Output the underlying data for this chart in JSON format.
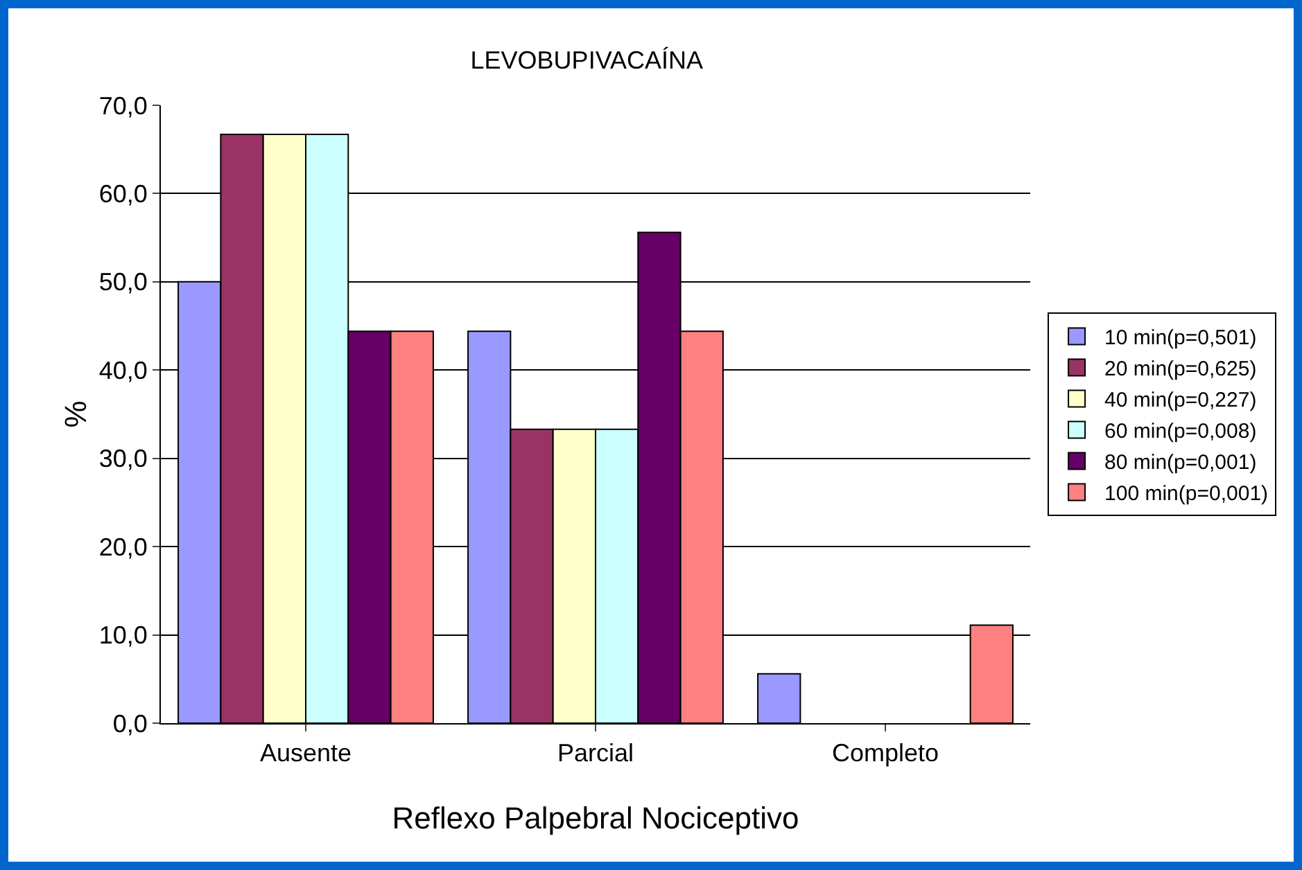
{
  "chart_data": {
    "type": "bar",
    "title": "LEVOBUPIVACAÍNA",
    "xlabel": "Reflexo Palpebral Nociceptivo",
    "ylabel": "%",
    "categories": [
      "Ausente",
      "Parcial",
      "Completo"
    ],
    "series": [
      {
        "name": "10 min(p=0,501)",
        "color": "#9999ff",
        "values": [
          50.0,
          44.4,
          5.6
        ]
      },
      {
        "name": "20 min(p=0,625)",
        "color": "#993366",
        "values": [
          66.7,
          33.3,
          0
        ]
      },
      {
        "name": "40 min(p=0,227)",
        "color": "#ffffcc",
        "values": [
          66.7,
          33.3,
          0
        ]
      },
      {
        "name": "60 min(p=0,008)",
        "color": "#ccffff",
        "values": [
          66.7,
          33.3,
          0
        ]
      },
      {
        "name": "80 min(p=0,001)",
        "color": "#660066",
        "values": [
          44.4,
          55.6,
          0
        ]
      },
      {
        "name": "100 min(p=0,001)",
        "color": "#ff8080",
        "values": [
          44.4,
          44.4,
          11.1
        ]
      }
    ],
    "ylim": [
      0,
      70
    ],
    "yticks": [
      {
        "value": 0,
        "label": "0,0"
      },
      {
        "value": 10,
        "label": "10,0"
      },
      {
        "value": 20,
        "label": "20,0"
      },
      {
        "value": 30,
        "label": "30,0"
      },
      {
        "value": 40,
        "label": "40,0"
      },
      {
        "value": 50,
        "label": "50,0"
      },
      {
        "value": 60,
        "label": "60,0"
      },
      {
        "value": 70,
        "label": "70,0"
      }
    ],
    "grid": "y",
    "legend": "right"
  }
}
